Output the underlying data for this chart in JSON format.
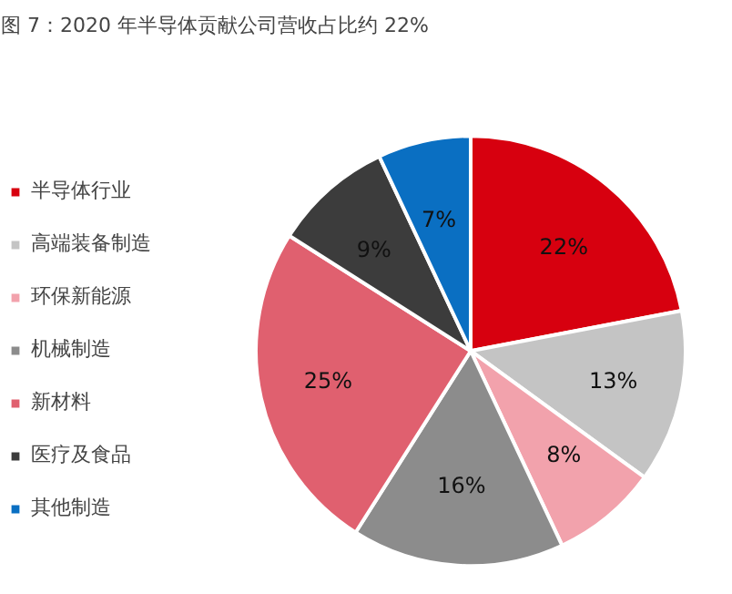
{
  "chart_data": {
    "type": "pie",
    "title": "图 7：2020 年半导体贡献公司营收占比约 22%",
    "categories": [
      "半导体行业",
      "高端装备制造",
      "环保新能源",
      "机械制造",
      "新材料",
      "医疗及食品",
      "其他制造"
    ],
    "values": [
      22,
      13,
      8,
      16,
      25,
      9,
      7
    ],
    "colors": [
      "#d7000f",
      "#c4c4c4",
      "#f2a2ac",
      "#8c8c8c",
      "#e0606f",
      "#3c3c3c",
      "#0a6fc2"
    ],
    "value_labels": [
      "22%",
      "13%",
      "8%",
      "16%",
      "25%",
      "9%",
      "7%"
    ],
    "legend": "left"
  }
}
